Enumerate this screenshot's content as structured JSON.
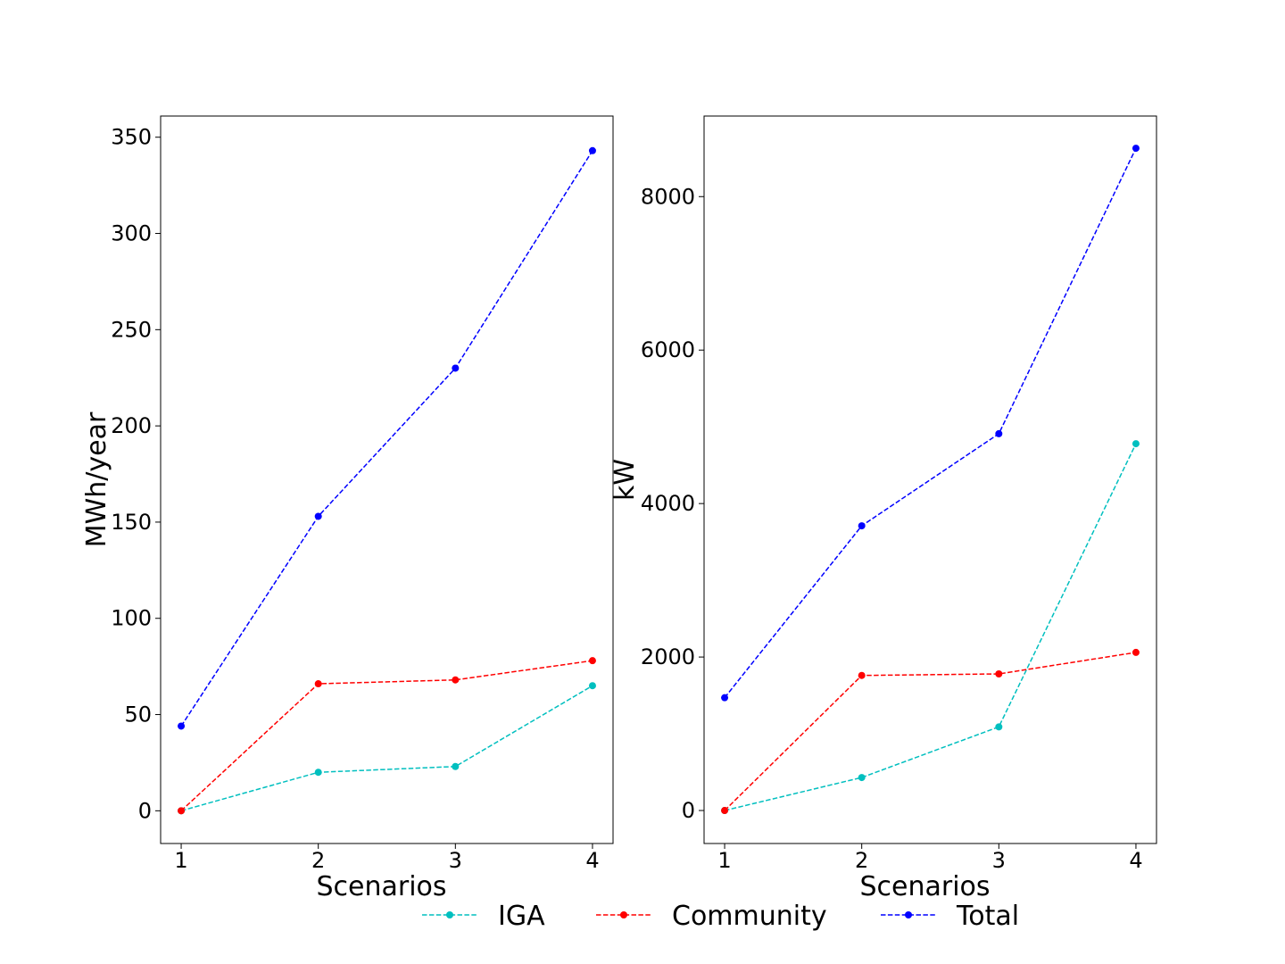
{
  "chart_data": [
    {
      "type": "line",
      "xlabel": "Scenarios",
      "ylabel": "MWh/year",
      "x": [
        1,
        2,
        3,
        4
      ],
      "xticks": [
        1,
        2,
        3,
        4
      ],
      "yticks": [
        0,
        50,
        100,
        150,
        200,
        250,
        300,
        350
      ],
      "xlim": [
        0.85,
        4.15
      ],
      "ylim": [
        -17,
        361
      ],
      "grid": false,
      "series": [
        {
          "name": "IGA",
          "color": "#00bfbf",
          "values": [
            0,
            20,
            23,
            65
          ]
        },
        {
          "name": "Community",
          "color": "#ff0000",
          "values": [
            0,
            66,
            68,
            78
          ]
        },
        {
          "name": "Total",
          "color": "#0000ff",
          "values": [
            44,
            153,
            230,
            343
          ]
        }
      ]
    },
    {
      "type": "line",
      "xlabel": "Scenarios",
      "ylabel": "kW",
      "x": [
        1,
        2,
        3,
        4
      ],
      "xticks": [
        1,
        2,
        3,
        4
      ],
      "yticks": [
        0,
        2000,
        4000,
        6000,
        8000
      ],
      "xlim": [
        0.85,
        4.15
      ],
      "ylim": [
        -430,
        9050
      ],
      "grid": false,
      "series": [
        {
          "name": "IGA",
          "color": "#00bfbf",
          "values": [
            0,
            430,
            1090,
            4780
          ]
        },
        {
          "name": "Community",
          "color": "#ff0000",
          "values": [
            0,
            1760,
            1780,
            2060
          ]
        },
        {
          "name": "Total",
          "color": "#0000ff",
          "values": [
            1470,
            3710,
            4910,
            8630
          ]
        }
      ]
    }
  ],
  "legend": {
    "placement": "bottom-center",
    "entries": [
      {
        "label": "IGA",
        "color": "#00bfbf"
      },
      {
        "label": "Community",
        "color": "#ff0000"
      },
      {
        "label": "Total",
        "color": "#0000ff"
      }
    ]
  }
}
